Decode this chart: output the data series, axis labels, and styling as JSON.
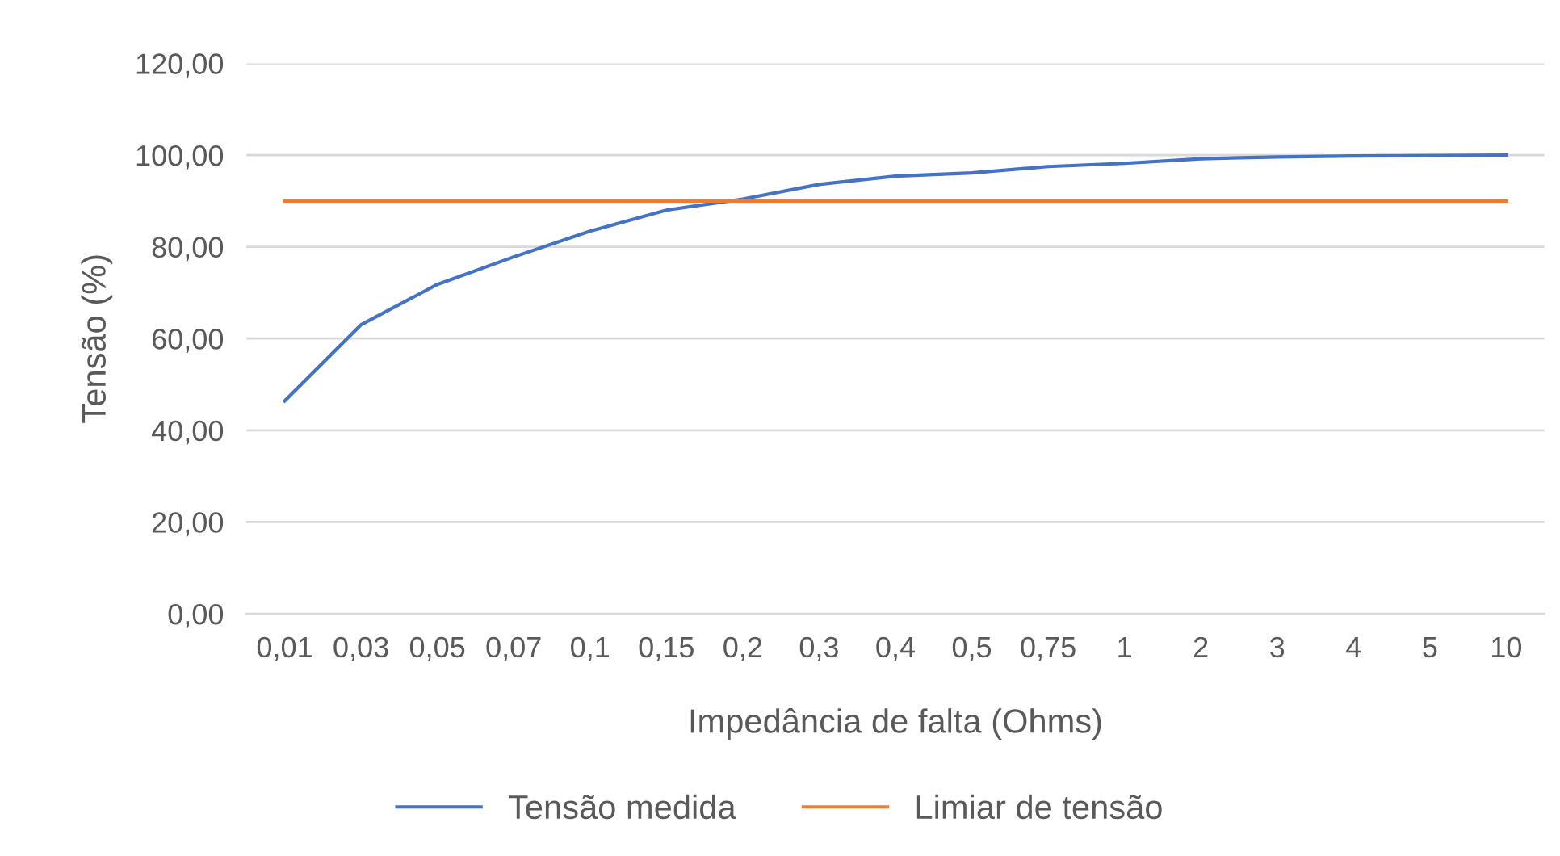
{
  "chart_data": {
    "type": "line",
    "xlabel": "Impedância de falta (Ohms)",
    "ylabel": "Tensão (%)",
    "categories": [
      "0,01",
      "0,03",
      "0,05",
      "0,07",
      "0,1",
      "0,15",
      "0,2",
      "0,3",
      "0,4",
      "0,5",
      "0,75",
      "1",
      "2",
      "3",
      "4",
      "5",
      "10"
    ],
    "series": [
      {
        "name": "Tensão medida",
        "color": "#4472c4",
        "values": [
          46.4,
          63.0,
          71.8,
          77.8,
          83.4,
          88.0,
          90.4,
          93.6,
          95.4,
          96.1,
          97.5,
          98.2,
          99.2,
          99.6,
          99.8,
          99.9,
          100.0
        ]
      },
      {
        "name": "Limiar de tensão",
        "color": "#ed7d31",
        "values": [
          90,
          90,
          90,
          90,
          90,
          90,
          90,
          90,
          90,
          90,
          90,
          90,
          90,
          90,
          90,
          90,
          90
        ]
      }
    ],
    "ylim": [
      0,
      120
    ],
    "yticks": [
      {
        "value": 0,
        "label": "0,00"
      },
      {
        "value": 20,
        "label": "20,00"
      },
      {
        "value": 40,
        "label": "40,00"
      },
      {
        "value": 60,
        "label": "60,00"
      },
      {
        "value": 80,
        "label": "80,00"
      },
      {
        "value": 100,
        "label": "100,00"
      },
      {
        "value": 120,
        "label": "120,00"
      }
    ],
    "grid": "y",
    "legend": "bottom",
    "marker": "none",
    "line_style": "solid"
  }
}
